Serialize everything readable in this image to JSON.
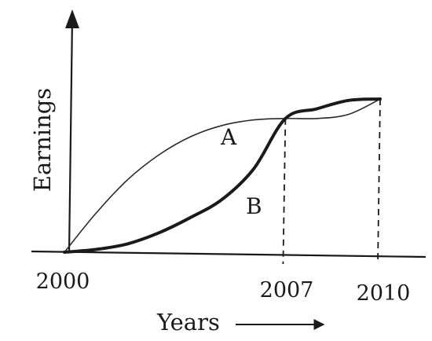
{
  "chart_data": {
    "type": "line",
    "xlabel": "Years",
    "ylabel": "Earnings",
    "x_ticks": [
      "2000",
      "2007",
      "2010"
    ],
    "xlim": [
      2000,
      2010.3
    ],
    "ylim": [
      0,
      1.2
    ],
    "grid": false,
    "legend": "none",
    "series": [
      {
        "name": "A",
        "color": "#2a2a2a",
        "x": [
          2000,
          2001,
          2002,
          2003,
          2004,
          2005,
          2006,
          2007,
          2008,
          2009,
          2010
        ],
        "y": [
          0,
          0.28,
          0.52,
          0.7,
          0.83,
          0.91,
          0.95,
          0.96,
          0.96,
          0.99,
          1.1
        ]
      },
      {
        "name": "B",
        "color": "#1a1a1a",
        "x": [
          2000,
          2001,
          2002,
          2003,
          2004,
          2005,
          2006,
          2007,
          2008,
          2009,
          2010
        ],
        "y": [
          0,
          0.02,
          0.06,
          0.14,
          0.25,
          0.38,
          0.6,
          0.96,
          1.03,
          1.09,
          1.1
        ]
      }
    ],
    "annotations": [
      {
        "text": "2007",
        "kind": "dashed-drop-line",
        "x": 2007,
        "y": 0.96
      },
      {
        "text": "2010",
        "kind": "dashed-drop-line",
        "x": 2010,
        "y": 1.1
      }
    ]
  }
}
